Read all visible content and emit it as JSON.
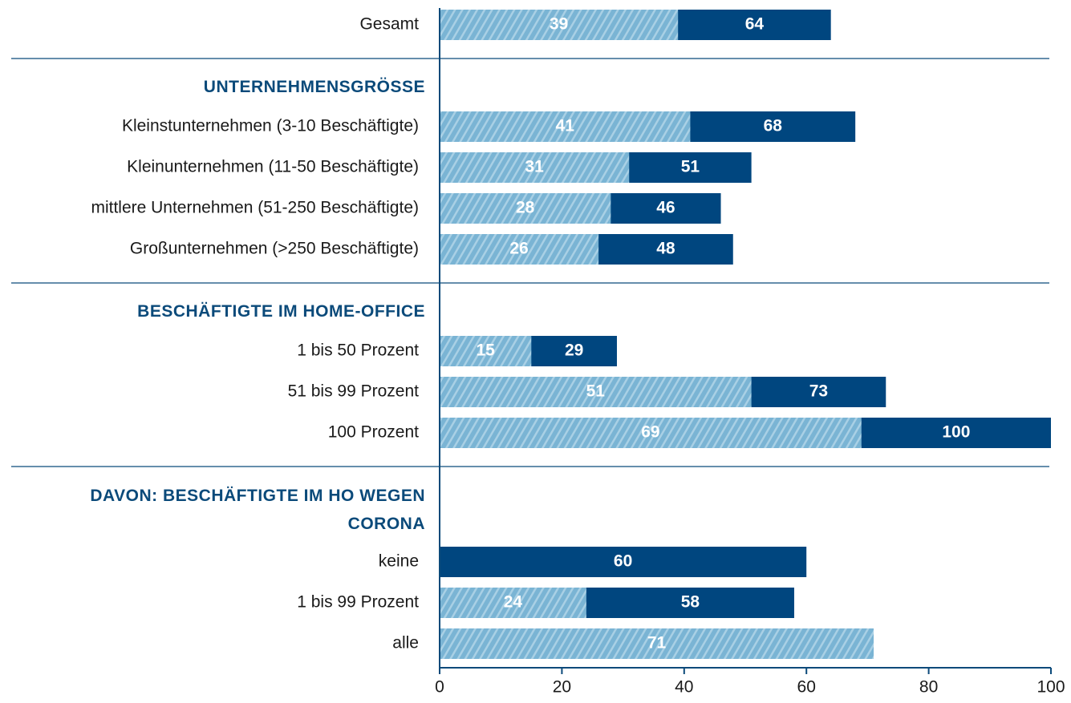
{
  "chart_data": {
    "type": "overlapping-bar",
    "categories": [
      "Gesamt",
      "UNTERNEHMENSGRÖSSE",
      "Kleinstunternehmen (3-10 Beschäftigte)",
      "Kleinunternehmen (11-50 Beschäftigte)",
      "mittlere Unternehmen (51-250 Beschäftigte)",
      "Großunternehmen (>250 Beschäftigte)",
      "BESCHÄFTIGTE IM HOME-OFFICE",
      "1 bis 50 Prozent",
      "51 bis 99 Prozent",
      "100 Prozent",
      "DAVON: BESCHÄFTIGTE IM HO WEGEN CORONA",
      "keine",
      "1 bis 99 Prozent",
      "alle"
    ],
    "series": [
      {
        "color": "#00467f",
        "values": [
          64,
          null,
          68,
          51,
          46,
          48,
          null,
          29,
          73,
          100,
          null,
          60,
          58,
          null
        ]
      },
      {
        "color": "#7ab4d4",
        "values": [
          39,
          null,
          41,
          31,
          28,
          26,
          null,
          15,
          51,
          69,
          null,
          null,
          24,
          71
        ]
      }
    ],
    "xlim": [
      0,
      100
    ],
    "xticks": [
      0,
      20,
      40,
      60,
      80,
      100
    ]
  }
}
